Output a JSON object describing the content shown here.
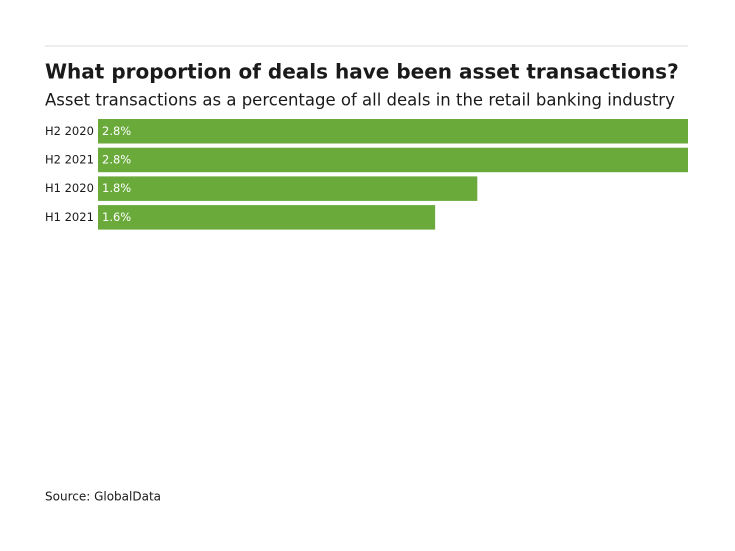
{
  "chart_data": {
    "type": "bar",
    "orientation": "horizontal",
    "title": "What proportion of deals have been asset transactions?",
    "subtitle": "Asset transactions as a percentage of all deals in the retail banking industry",
    "categories": [
      "H2 2020",
      "H2 2021",
      "H1 2020",
      "H1 2021"
    ],
    "values": [
      2.8,
      2.8,
      1.8,
      1.6
    ],
    "value_labels": [
      "2.8%",
      "2.8%",
      "1.8%",
      "1.6%"
    ],
    "color": "#6aaa3a",
    "source": "Source: GlobalData"
  }
}
